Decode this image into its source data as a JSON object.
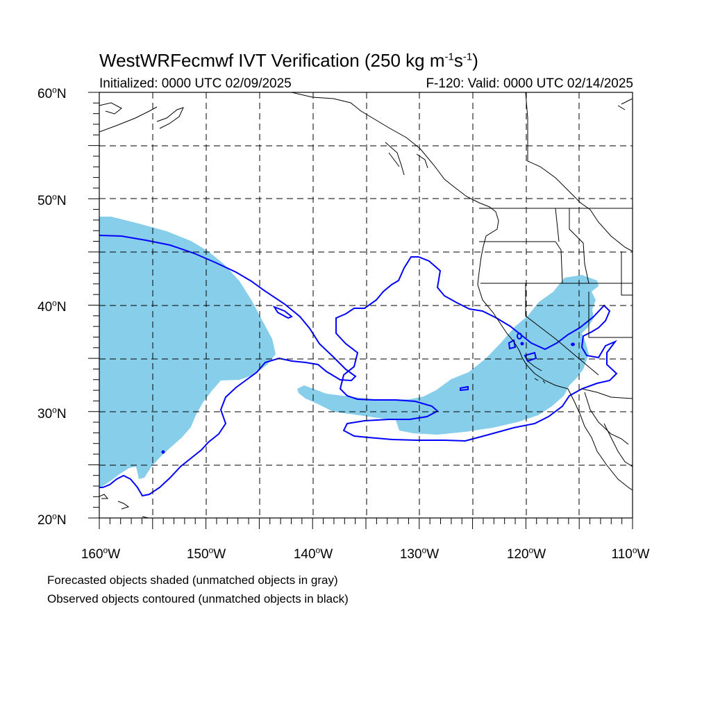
{
  "title": {
    "main": "WestWRFecmwf IVT Verification (250 kg m",
    "exp1": "-1",
    "mid": "s",
    "exp2": "-1",
    "end": ")"
  },
  "subtitle_left": "Initialized: 0000 UTC 02/09/2025",
  "subtitle_right": "F-120: Valid: 0000 UTC 02/14/2025",
  "lat_labels": [
    "60oN",
    "50oN",
    "40oN",
    "30oN",
    "20oN"
  ],
  "lon_labels": [
    "160oW",
    "150oW",
    "140oW",
    "130oW",
    "120oW",
    "110oW"
  ],
  "notes": [
    "Forecasted objects shaded (unmatched objects in gray)",
    "Observed objects contoured (unmatched objects in black)"
  ],
  "colors": {
    "forecast_fill": "#87CEEB",
    "observed_contour": "#0000FF",
    "coastline": "#000000",
    "grid": "#000000"
  }
}
